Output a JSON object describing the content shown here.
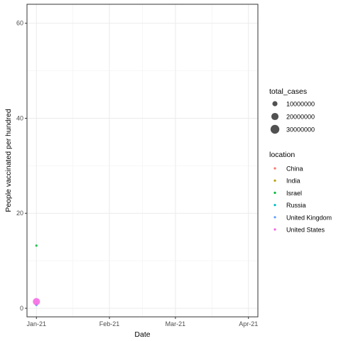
{
  "chart_data": {
    "type": "scatter",
    "xlabel": "Date",
    "ylabel": "People vaccinated per hundred",
    "x_ticks": [
      "Jan-21",
      "Feb-21",
      "Mar-21",
      "Apr-21"
    ],
    "x_tick_dates": [
      "2021-01-01",
      "2021-02-01",
      "2021-03-01",
      "2021-04-01"
    ],
    "xlim": [
      "2020-12-28",
      "2021-04-05"
    ],
    "ylim": [
      -1.8,
      64
    ],
    "y_ticks": [
      0,
      20,
      40,
      60
    ],
    "grid": true,
    "legend_position": "right",
    "size_legend": {
      "title": "total_cases",
      "entries": [
        {
          "label": "10000000",
          "value": 10000000
        },
        {
          "label": "20000000",
          "value": 20000000
        },
        {
          "label": "30000000",
          "value": 30000000
        }
      ]
    },
    "color_legend": {
      "title": "location",
      "entries": [
        {
          "label": "China",
          "color": "#F8766D"
        },
        {
          "label": "India",
          "color": "#B79F00"
        },
        {
          "label": "Israel",
          "color": "#00BA38"
        },
        {
          "label": "Russia",
          "color": "#00BFC4"
        },
        {
          "label": "United Kingdom",
          "color": "#619CFF"
        },
        {
          "label": "United States",
          "color": "#F564E3"
        }
      ]
    },
    "points": [
      {
        "location": "Israel",
        "date": "2021-01-01",
        "y": 13.2,
        "total_cases": 400000
      },
      {
        "location": "United Kingdom",
        "date": "2021-01-01",
        "y": 0.7,
        "total_cases": 2500000
      },
      {
        "location": "United States",
        "date": "2021-01-01",
        "y": 1.4,
        "total_cases": 20000000
      }
    ]
  }
}
